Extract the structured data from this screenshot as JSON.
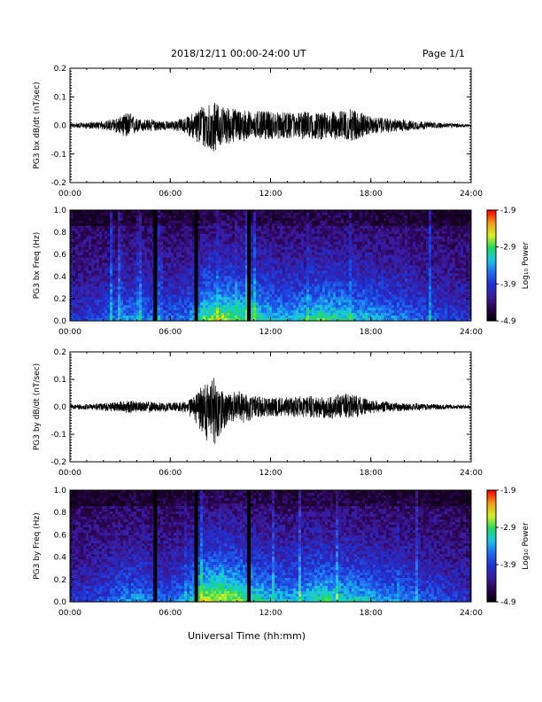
{
  "header": {
    "date_range": "2018/12/11  00:00-24:00 UT",
    "page": "Page 1/1"
  },
  "x_axis_label": "Universal Time (hh:mm)",
  "colorbar_label": "Log₁₀ Power",
  "colors": {
    "colormap": [
      "#000000",
      "#2a004a",
      "#3a1a9a",
      "#2030d0",
      "#1e6af0",
      "#18c8e8",
      "#20d860",
      "#d8f020",
      "#f0a010",
      "#ff0000"
    ]
  },
  "chart_data": [
    {
      "type": "line",
      "id": "bx-dbdt",
      "ylabel": "PG3 bx dB/dt (nT/sec)",
      "xlim": [
        "00:00",
        "24:00"
      ],
      "x_ticks": [
        "00:00",
        "06:00",
        "12:00",
        "18:00",
        "24:00"
      ],
      "ylim": [
        -0.2,
        0.2
      ],
      "y_ticks": [
        "0.2",
        "0.1",
        "0.0",
        "-0.1",
        "-0.2"
      ],
      "envelope": {
        "hours": [
          0,
          1,
          2,
          3,
          3.5,
          4,
          5,
          6,
          7,
          7.5,
          8,
          8.5,
          9,
          10,
          11,
          12,
          13,
          14,
          15,
          16,
          17,
          18,
          19,
          20,
          21,
          22,
          23,
          24
        ],
        "max": [
          0.008,
          0.01,
          0.015,
          0.03,
          0.05,
          0.025,
          0.02,
          0.015,
          0.03,
          0.05,
          0.08,
          0.085,
          0.07,
          0.06,
          0.05,
          0.05,
          0.045,
          0.05,
          0.045,
          0.05,
          0.06,
          0.03,
          0.025,
          0.02,
          0.015,
          0.01,
          0.008,
          0.005
        ],
        "min": [
          -0.008,
          -0.01,
          -0.015,
          -0.03,
          -0.05,
          -0.025,
          -0.02,
          -0.015,
          -0.03,
          -0.06,
          -0.08,
          -0.1,
          -0.07,
          -0.06,
          -0.05,
          -0.05,
          -0.045,
          -0.05,
          -0.05,
          -0.05,
          -0.055,
          -0.03,
          -0.025,
          -0.02,
          -0.015,
          -0.01,
          -0.008,
          -0.005
        ]
      }
    },
    {
      "type": "heatmap",
      "id": "bx-spectrogram",
      "ylabel": "PG3 bx Freq (Hz)",
      "xlim": [
        "00:00",
        "24:00"
      ],
      "x_ticks": [
        "00:00",
        "06:00",
        "12:00",
        "18:00",
        "24:00"
      ],
      "ylim": [
        0.0,
        1.0
      ],
      "y_ticks": [
        "1.0",
        "0.8",
        "0.6",
        "0.4",
        "0.2",
        "0.0"
      ],
      "colorbar": {
        "min": -4.9,
        "max": -1.9,
        "ticks": [
          "-1.9",
          "-2.9",
          "-3.9",
          "-4.9"
        ]
      },
      "data_gaps_hours": [
        5.1,
        7.55,
        10.7
      ],
      "activity_profile": {
        "hours": [
          0,
          1,
          2,
          3,
          4,
          5,
          6,
          7,
          7.6,
          8,
          9,
          10,
          11,
          12,
          13,
          14,
          15,
          16,
          17,
          18,
          19,
          20,
          21,
          22,
          23,
          24
        ],
        "level": [
          0.25,
          0.3,
          0.35,
          0.45,
          0.5,
          0.4,
          0.4,
          0.45,
          0.6,
          0.75,
          0.8,
          0.75,
          0.65,
          0.6,
          0.55,
          0.6,
          0.7,
          0.65,
          0.6,
          0.55,
          0.5,
          0.45,
          0.4,
          0.35,
          0.3,
          0.25
        ]
      }
    },
    {
      "type": "line",
      "id": "by-dbdt",
      "ylabel": "PG3 by dB/dt (nT/sec)",
      "xlim": [
        "00:00",
        "24:00"
      ],
      "x_ticks": [
        "00:00",
        "06:00",
        "12:00",
        "18:00",
        "24:00"
      ],
      "ylim": [
        -0.2,
        0.2
      ],
      "y_ticks": [
        "0.2",
        "0.1",
        "0.0",
        "-0.1",
        "-0.2"
      ],
      "envelope": {
        "hours": [
          0,
          1,
          2,
          3,
          3.5,
          4,
          5,
          6,
          7,
          7.5,
          8,
          8.5,
          9,
          9.5,
          10,
          10.5,
          11,
          12,
          13,
          14,
          15,
          16,
          17,
          18,
          19,
          20,
          21,
          22,
          23,
          24
        ],
        "max": [
          0.008,
          0.01,
          0.015,
          0.02,
          0.025,
          0.02,
          0.02,
          0.015,
          0.02,
          0.04,
          0.09,
          0.12,
          0.06,
          0.05,
          0.06,
          0.05,
          0.04,
          0.035,
          0.035,
          0.04,
          0.04,
          0.045,
          0.05,
          0.025,
          0.02,
          0.015,
          0.012,
          0.01,
          0.008,
          0.006
        ],
        "min": [
          -0.008,
          -0.01,
          -0.015,
          -0.02,
          -0.025,
          -0.02,
          -0.02,
          -0.015,
          -0.02,
          -0.06,
          -0.1,
          -0.16,
          -0.1,
          -0.06,
          -0.05,
          -0.06,
          -0.04,
          -0.035,
          -0.035,
          -0.04,
          -0.04,
          -0.045,
          -0.04,
          -0.025,
          -0.02,
          -0.015,
          -0.012,
          -0.01,
          -0.008,
          -0.006
        ]
      }
    },
    {
      "type": "heatmap",
      "id": "by-spectrogram",
      "ylabel": "PG3 by Freq (Hz)",
      "xlim": [
        "00:00",
        "24:00"
      ],
      "x_ticks": [
        "00:00",
        "06:00",
        "12:00",
        "18:00",
        "24:00"
      ],
      "ylim": [
        0.0,
        1.0
      ],
      "y_ticks": [
        "1.0",
        "0.8",
        "0.6",
        "0.4",
        "0.2",
        "0.0"
      ],
      "colorbar": {
        "min": -4.9,
        "max": -1.9,
        "ticks": [
          "-1.9",
          "-2.9",
          "-3.9",
          "-4.9"
        ]
      },
      "data_gaps_hours": [
        5.1,
        7.55,
        10.7
      ],
      "activity_profile": {
        "hours": [
          0,
          1,
          2,
          3,
          4,
          5,
          6,
          7,
          7.6,
          8,
          9,
          10,
          11,
          12,
          13,
          14,
          15,
          16,
          17,
          18,
          19,
          20,
          21,
          22,
          23,
          24
        ],
        "level": [
          0.25,
          0.3,
          0.35,
          0.45,
          0.5,
          0.4,
          0.4,
          0.5,
          0.7,
          0.85,
          0.85,
          0.8,
          0.65,
          0.6,
          0.55,
          0.6,
          0.7,
          0.65,
          0.6,
          0.55,
          0.5,
          0.45,
          0.4,
          0.35,
          0.3,
          0.25
        ]
      }
    }
  ]
}
